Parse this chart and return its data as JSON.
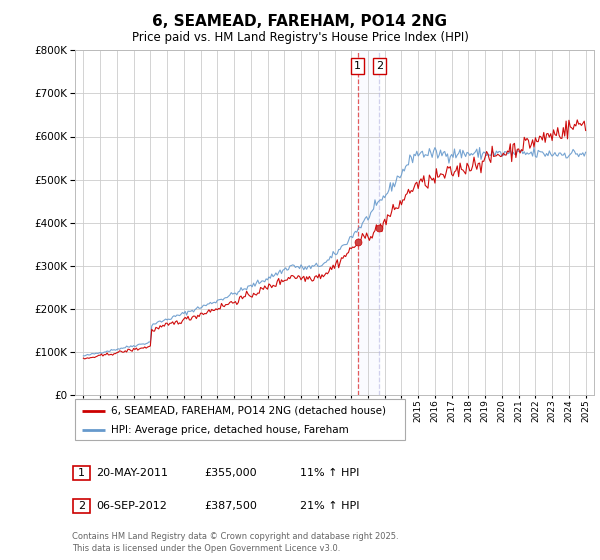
{
  "title": "6, SEAMEAD, FAREHAM, PO14 2NG",
  "subtitle": "Price paid vs. HM Land Registry's House Price Index (HPI)",
  "legend_line1": "6, SEAMEAD, FAREHAM, PO14 2NG (detached house)",
  "legend_line2": "HPI: Average price, detached house, Fareham",
  "transaction1_label": "1",
  "transaction1_date": "20-MAY-2011",
  "transaction1_price": "£355,000",
  "transaction1_hpi": "11% ↑ HPI",
  "transaction2_label": "2",
  "transaction2_date": "06-SEP-2012",
  "transaction2_price": "£387,500",
  "transaction2_hpi": "21% ↑ HPI",
  "footer": "Contains HM Land Registry data © Crown copyright and database right 2025.\nThis data is licensed under the Open Government Licence v3.0.",
  "red_color": "#cc0000",
  "blue_color": "#6699cc",
  "vline1_x": 2011.38,
  "vline2_x": 2012.68,
  "ylim_min": 0,
  "ylim_max": 800000,
  "xlim_min": 1994.5,
  "xlim_max": 2025.5,
  "marker1_x": 2011.38,
  "marker1_y": 355000,
  "marker2_x": 2012.68,
  "marker2_y": 387500,
  "yticks": [
    0,
    100000,
    200000,
    300000,
    400000,
    500000,
    600000,
    700000,
    800000
  ]
}
